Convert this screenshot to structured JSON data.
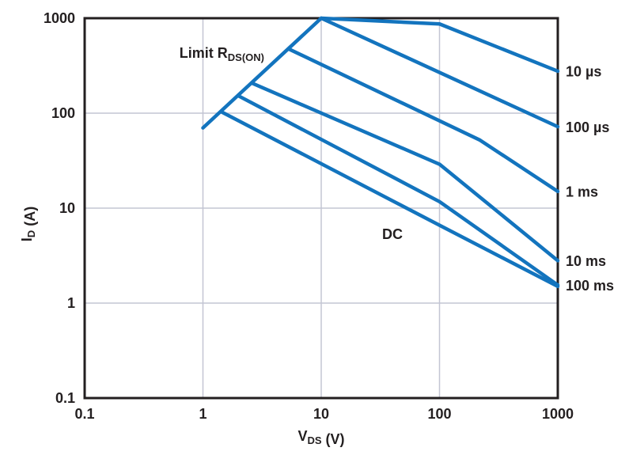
{
  "chart_data": {
    "type": "line",
    "description": "MOSFET safe operating area: drain current vs drain-source voltage, log-log",
    "grid": "on",
    "legend_position": "right-edge-labels",
    "colors": {
      "line": "#1374be",
      "text": "#231f20",
      "grid": "#c3c5d3",
      "border": "#231f20",
      "background": "#ffffff"
    },
    "x_axis": {
      "scale": "log",
      "min": 0.1,
      "max": 1000,
      "label_segments": [
        {
          "t": "V"
        },
        {
          "s": "DS"
        },
        {
          "t": " (V)"
        }
      ],
      "ticks": [
        {
          "v": 0.1,
          "label": "0.1"
        },
        {
          "v": 1,
          "label": "1"
        },
        {
          "v": 10,
          "label": "10"
        },
        {
          "v": 100,
          "label": "100"
        },
        {
          "v": 1000,
          "label": "1000"
        }
      ],
      "gridlines": [
        1,
        10,
        100
      ]
    },
    "y_axis": {
      "scale": "log",
      "min": 0.1,
      "max": 1000,
      "label_segments": [
        {
          "t": "I"
        },
        {
          "s": "D"
        },
        {
          "t": " (A)"
        }
      ],
      "ticks": [
        {
          "v": 0.1,
          "label": "0.1"
        },
        {
          "v": 1,
          "label": "1"
        },
        {
          "v": 10,
          "label": "10"
        },
        {
          "v": 100,
          "label": "100"
        },
        {
          "v": 1000,
          "label": "1000"
        }
      ],
      "gridlines": [
        1,
        10,
        100
      ]
    },
    "series": [
      {
        "id": "limit-rdson",
        "name": "Limit RDS(ON)",
        "edge_label": null,
        "points": [
          [
            1,
            70
          ],
          [
            10,
            1000
          ]
        ]
      },
      {
        "id": "t-10us",
        "name": "10 µs",
        "edge_label": "10 µs",
        "points": [
          [
            10,
            1000
          ],
          [
            100,
            870
          ],
          [
            1000,
            277
          ]
        ]
      },
      {
        "id": "t-100us",
        "name": "100 µs",
        "edge_label": "100 µs",
        "points": [
          [
            10,
            1000
          ],
          [
            1000,
            72
          ]
        ]
      },
      {
        "id": "t-1ms",
        "name": "1 ms",
        "edge_label": "1 ms",
        "points": [
          [
            5.3,
            475
          ],
          [
            220,
            52
          ],
          [
            1000,
            15
          ]
        ]
      },
      {
        "id": "t-10ms",
        "name": "10 ms",
        "edge_label": "10 ms",
        "points": [
          [
            2.6,
            207
          ],
          [
            100,
            29
          ],
          [
            1000,
            2.8
          ]
        ]
      },
      {
        "id": "t-100ms",
        "name": "100 ms",
        "edge_label": "100 ms",
        "points": [
          [
            2,
            152
          ],
          [
            100,
            11.7
          ],
          [
            1000,
            1.55
          ]
        ]
      },
      {
        "id": "dc",
        "name": "DC",
        "edge_label": null,
        "points": [
          [
            1.44,
            103
          ],
          [
            100,
            6.6
          ],
          [
            1000,
            1.5
          ]
        ]
      }
    ],
    "annotations": [
      {
        "id": "limit-rdson-label",
        "segments": [
          {
            "t": "Limit R"
          },
          {
            "s": "DS(ON)"
          }
        ],
        "anchor": "end",
        "v": 3.3,
        "i": 430
      },
      {
        "id": "dc-label",
        "segments": [
          {
            "t": "DC"
          }
        ],
        "anchor": "middle",
        "v": 40,
        "i": 5.3
      }
    ]
  }
}
